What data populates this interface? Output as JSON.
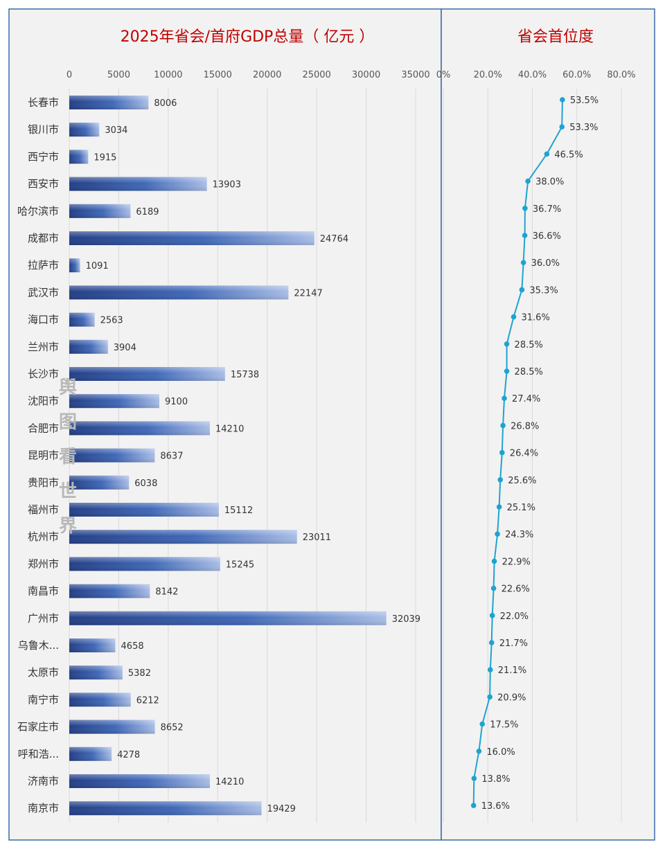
{
  "chart_data": [
    {
      "type": "bar",
      "orientation": "horizontal",
      "title": "2025年省会/首府GDP总量（ 亿元 ）",
      "categories": [
        "长春市",
        "银川市",
        "西宁市",
        "西安市",
        "哈尔滨市",
        "成都市",
        "拉萨市",
        "武汉市",
        "海口市",
        "兰州市",
        "长沙市",
        "沈阳市",
        "合肥市",
        "昆明市",
        "贵阳市",
        "福州市",
        "杭州市",
        "郑州市",
        "南昌市",
        "广州市",
        "乌鲁木...",
        "太原市",
        "南宁市",
        "石家庄市",
        "呼和浩...",
        "济南市",
        "南京市"
      ],
      "values": [
        8006,
        3034,
        1915,
        13903,
        6189,
        24764,
        1091,
        22147,
        2563,
        3904,
        15738,
        9100,
        14210,
        8637,
        6038,
        15112,
        23011,
        15245,
        8142,
        32039,
        4658,
        5382,
        6212,
        8652,
        4278,
        14210,
        19429
      ],
      "xlim": [
        0,
        35000
      ],
      "ticks": [
        "0",
        "5000",
        "10000",
        "15000",
        "20000",
        "25000",
        "30000",
        "35000"
      ],
      "grid": true,
      "data_labels": true,
      "bar_color": "#3a5fad"
    },
    {
      "type": "line",
      "title": "省会首位度",
      "categories": [
        "长春市",
        "银川市",
        "西宁市",
        "西安市",
        "哈尔滨市",
        "成都市",
        "拉萨市",
        "武汉市",
        "海口市",
        "兰州市",
        "长沙市",
        "沈阳市",
        "合肥市",
        "昆明市",
        "贵阳市",
        "福州市",
        "杭州市",
        "郑州市",
        "南昌市",
        "广州市",
        "乌鲁木...",
        "太原市",
        "南宁市",
        "石家庄市",
        "呼和浩...",
        "济南市",
        "南京市"
      ],
      "values": [
        53.5,
        53.3,
        46.5,
        38.0,
        36.7,
        36.6,
        36.0,
        35.3,
        31.6,
        28.5,
        28.5,
        27.4,
        26.8,
        26.4,
        25.6,
        25.1,
        24.3,
        22.9,
        22.6,
        22.0,
        21.7,
        21.1,
        20.9,
        17.5,
        16.0,
        13.8,
        13.6
      ],
      "value_labels": [
        "53.5%",
        "53.3%",
        "46.5%",
        "38.0%",
        "36.7%",
        "36.6%",
        "36.0%",
        "35.3%",
        "31.6%",
        "28.5%",
        "28.5%",
        "27.4%",
        "26.8%",
        "26.4%",
        "25.6%",
        "25.1%",
        "24.3%",
        "22.9%",
        "22.6%",
        "22.0%",
        "21.7%",
        "21.1%",
        "20.9%",
        "17.5%",
        "16.0%",
        "13.8%",
        "13.6%"
      ],
      "xlim": [
        0,
        80
      ],
      "ticks": [
        "0%",
        "20.0%",
        "40.0%",
        "60.0%",
        "80.0%"
      ],
      "grid": true,
      "line_color": "#1ea3d0"
    }
  ],
  "watermark": [
    "舆",
    "图",
    "看",
    "世",
    "界"
  ]
}
